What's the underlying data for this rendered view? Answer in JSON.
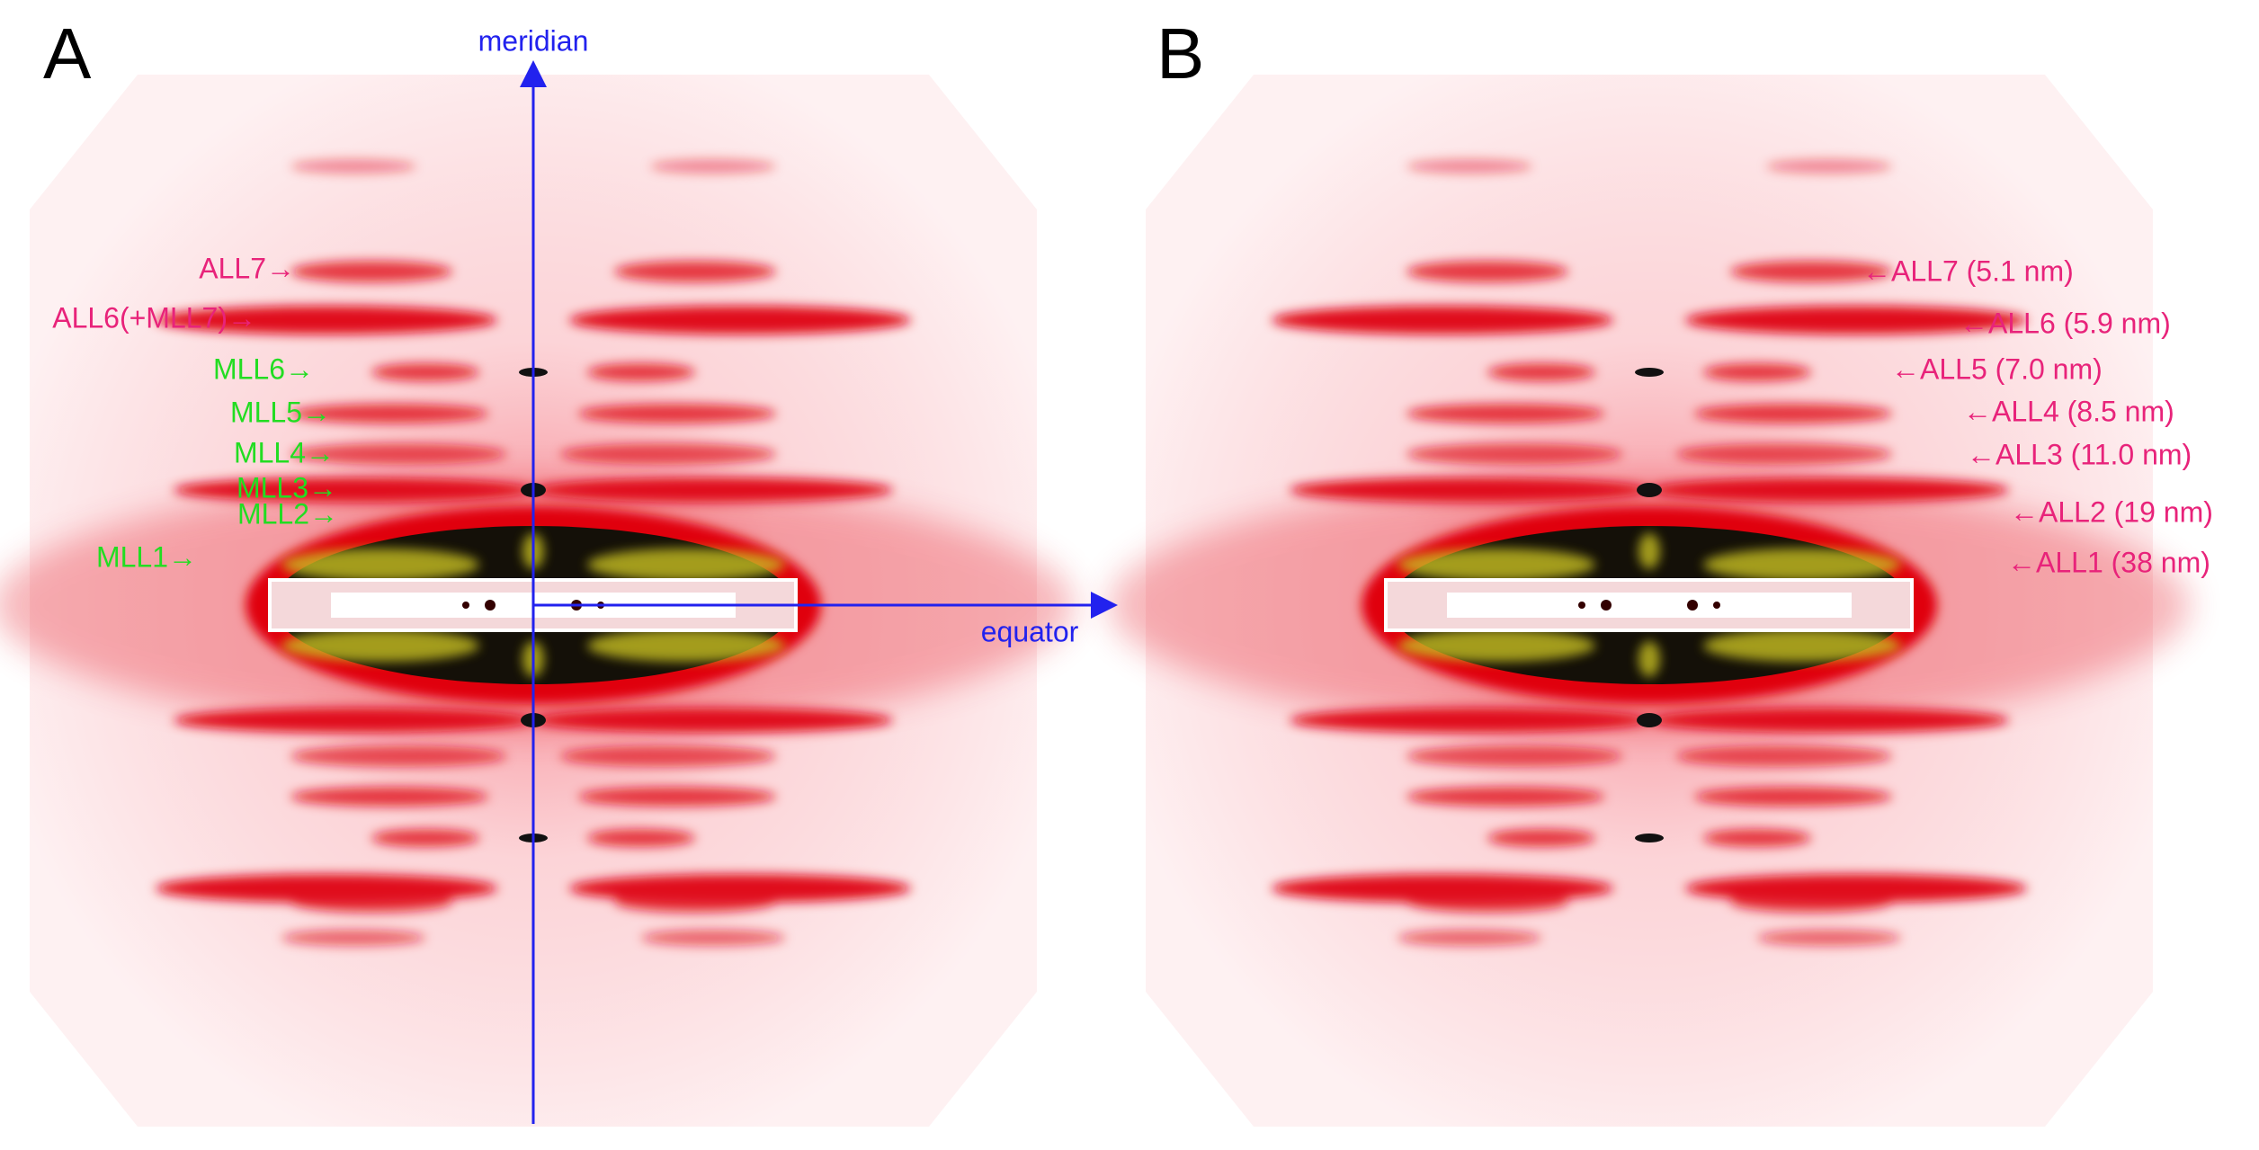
{
  "panels": [
    {
      "label": "A",
      "axis_labels": {
        "meridian": "meridian",
        "equator": "equator"
      },
      "annotations": [
        {
          "text": "ALL7→",
          "color": "#e8237a"
        },
        {
          "text": "ALL6(+MLL7)→",
          "color": "#e8237a"
        },
        {
          "text": "MLL6→",
          "color": "#22dd22"
        },
        {
          "text": "MLL5→",
          "color": "#22dd22"
        },
        {
          "text": "MLL4→",
          "color": "#22dd22"
        },
        {
          "text": "MLL3→",
          "color": "#22dd22"
        },
        {
          "text": "MLL2→",
          "color": "#22dd22"
        },
        {
          "text": "MLL1→",
          "color": "#22dd22"
        }
      ]
    },
    {
      "label": "B",
      "annotations": [
        {
          "text": "←ALL7 (5.1 nm)",
          "color": "#e8237a"
        },
        {
          "text": "←ALL6 (5.9 nm)",
          "color": "#e8237a"
        },
        {
          "text": "←ALL5 (7.0 nm)",
          "color": "#e8237a"
        },
        {
          "text": "←ALL4 (8.5 nm)",
          "color": "#e8237a"
        },
        {
          "text": "←ALL3 (11.0 nm)",
          "color": "#e8237a"
        },
        {
          "text": "←ALL2 (19 nm)",
          "color": "#e8237a"
        },
        {
          "text": "←ALL1 (38 nm)",
          "color": "#e8237a"
        }
      ]
    }
  ]
}
